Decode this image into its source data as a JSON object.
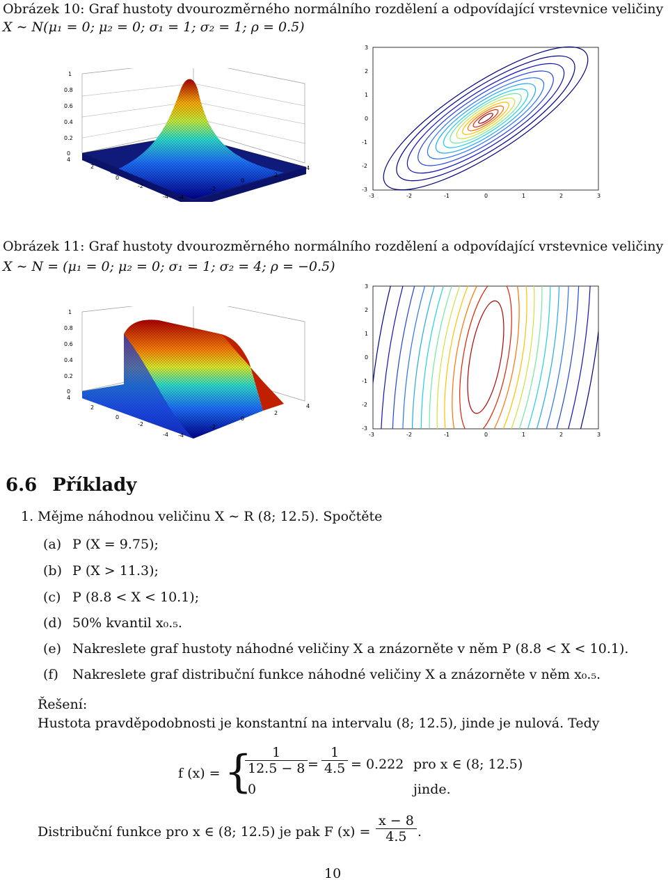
{
  "figure10": {
    "caption_line1": "Obrázek 10: Graf hustoty dvourozměrného normálního rozdělení a odpovídající vrstevnice veličiny",
    "caption_line2": "X ∼ N(μ₁ = 0; μ₂ = 0; σ₁ = 1; σ₂ = 1; ρ = 0.5)",
    "surface_ticks_z": [
      "1",
      "0.8",
      "0.6",
      "0.4",
      "0.2",
      "0"
    ],
    "surface_ticks_left": [
      "4",
      "2",
      "0",
      "-2",
      "-4"
    ],
    "surface_ticks_right": [
      "-4",
      "-2",
      "0",
      "2",
      "4"
    ],
    "contour_ticks_y": [
      "3",
      "2",
      "1",
      "0",
      "-1",
      "-2",
      "-3"
    ],
    "contour_ticks_x": [
      "-3",
      "-2",
      "-1",
      "0",
      "1",
      "2",
      "3"
    ]
  },
  "figure11": {
    "caption_line1": "Obrázek 11: Graf hustoty dvourozměrného normálního rozdělení a odpovídající vrstevnice veličiny",
    "caption_line2": "X ∼ N = (μ₁ = 0; μ₂ = 0; σ₁ = 1; σ₂ = 4; ρ = −0.5)",
    "surface_ticks_z": [
      "1",
      "0.8",
      "0.6",
      "0.4",
      "0.2",
      "0"
    ],
    "surface_ticks_left": [
      "4",
      "2",
      "0",
      "-2",
      "-4"
    ],
    "surface_ticks_right": [
      "-4",
      "-2",
      "0",
      "2",
      "4"
    ],
    "contour_ticks_y": [
      "3",
      "2",
      "1",
      "0",
      "-1",
      "-2",
      "-3"
    ],
    "contour_ticks_x": [
      "-3",
      "-2",
      "-1",
      "0",
      "1",
      "2",
      "3"
    ]
  },
  "section": {
    "number": "6.6",
    "title": "Příklady"
  },
  "problem": {
    "intro": "1. Mějme náhodnou veličinu X ∼ R (8; 12.5). Spočtěte",
    "items": [
      {
        "label": "(a)",
        "text": "P (X = 9.75);"
      },
      {
        "label": "(b)",
        "text": "P (X > 11.3);"
      },
      {
        "label": "(c)",
        "text": "P (8.8 < X < 10.1);"
      },
      {
        "label": "(d)",
        "text": "50% kvantil x₀.₅."
      },
      {
        "label": "(e)",
        "text": "Nakreslete graf hustoty náhodné veličiny X a znázorněte v něm P (8.8 < X < 10.1)."
      },
      {
        "label": "(f)",
        "text": "Nakreslete graf distribuční funkce náhodné veličiny X a znázorněte v něm x₀.₅."
      }
    ]
  },
  "solution": {
    "heading": "Řešení:",
    "density_text": "Hustota pravděpodobnosti je konstantní na intervalu (8; 12.5), jinde je nulová. Tedy",
    "f_lhs": "f (x) =",
    "frac1_num": "1",
    "frac1_den": "12.5 − 8",
    "eq": "=",
    "frac2_num": "1",
    "frac2_den": "4.5",
    "value": "= 0.222",
    "case1_cond": "pro x ∈ (8; 12.5)",
    "case2_val": "0",
    "case2_cond": "jinde.",
    "dist_text": "Distribuční funkce pro x ∈ (8; 12.5) je pak F (x) =",
    "frac3_num": "x − 8",
    "frac3_den": "4.5",
    "dist_end": "."
  },
  "page_number": "10"
}
